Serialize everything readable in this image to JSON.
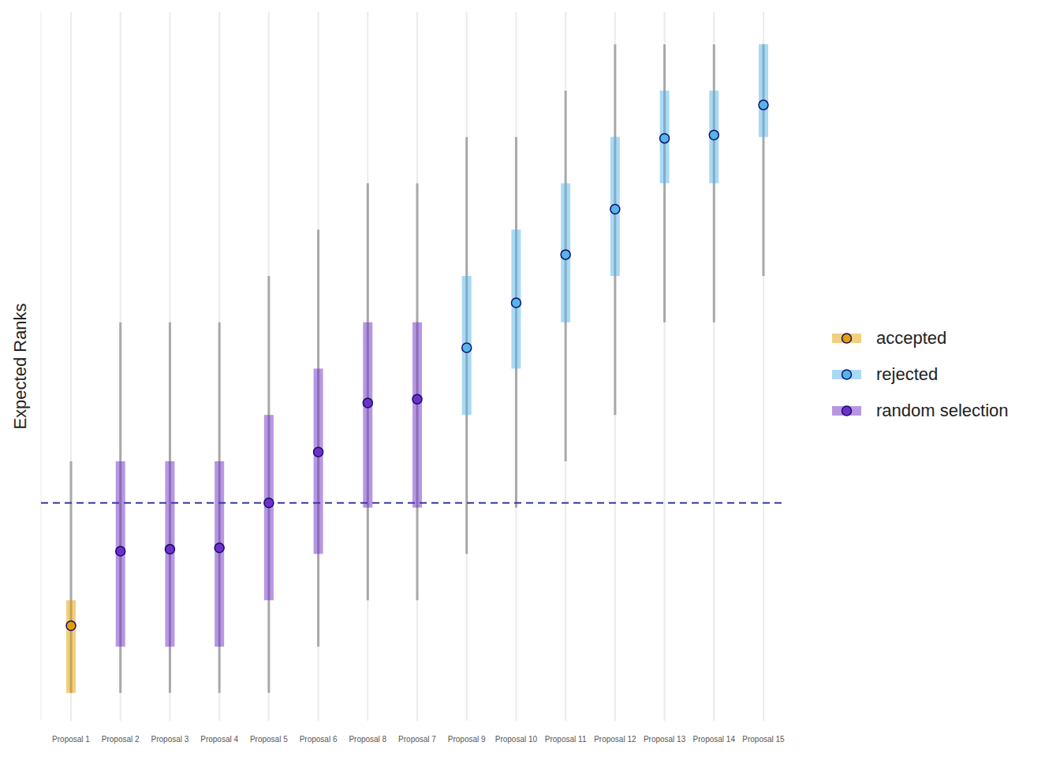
{
  "chart_data": {
    "type": "interval",
    "y_label": "Expected Ranks",
    "categories": [
      "Proposal 1",
      "Proposal 2",
      "Proposal 3",
      "Proposal 4",
      "Proposal 5",
      "Proposal 6",
      "Proposal 8",
      "Proposal 7",
      "Proposal 9",
      "Proposal 10",
      "Proposal 11",
      "Proposal 12",
      "Proposal 13",
      "Proposal 14",
      "Proposal 15"
    ],
    "ylim": [
      0.4,
      15.7
    ],
    "yticks": [],
    "tick_labels": "x",
    "grid": true,
    "legend": "right",
    "marker": "circle",
    "reference_line": 5.1,
    "series": [
      {
        "name": "accepted",
        "color": "#E69F00",
        "values": [
          2.45,
          null,
          null,
          null,
          null,
          null,
          null,
          null,
          null,
          null,
          null,
          null,
          null,
          null,
          null
        ],
        "inner_lower": [
          1,
          null,
          null,
          null,
          null,
          null,
          null,
          null,
          null,
          null,
          null,
          null,
          null,
          null,
          null
        ],
        "inner_upper": [
          3,
          null,
          null,
          null,
          null,
          null,
          null,
          null,
          null,
          null,
          null,
          null,
          null,
          null,
          null
        ],
        "outer_lower": [
          1,
          null,
          null,
          null,
          null,
          null,
          null,
          null,
          null,
          null,
          null,
          null,
          null,
          null,
          null
        ],
        "outer_upper": [
          6,
          null,
          null,
          null,
          null,
          null,
          null,
          null,
          null,
          null,
          null,
          null,
          null,
          null,
          null
        ]
      },
      {
        "name": "rejected",
        "color": "#56B4E9",
        "values": [
          null,
          null,
          null,
          null,
          null,
          null,
          null,
          null,
          8.45,
          9.42,
          10.46,
          11.44,
          12.97,
          13.04,
          13.69
        ],
        "inner_lower": [
          null,
          null,
          null,
          null,
          null,
          null,
          null,
          null,
          7,
          8,
          9,
          10,
          12,
          12,
          13
        ],
        "inner_upper": [
          null,
          null,
          null,
          null,
          null,
          null,
          null,
          null,
          10,
          11,
          12,
          13,
          14,
          14,
          15
        ],
        "outer_lower": [
          null,
          null,
          null,
          null,
          null,
          null,
          null,
          null,
          4,
          5,
          6,
          7,
          9,
          9,
          10
        ],
        "outer_upper": [
          null,
          null,
          null,
          null,
          null,
          null,
          null,
          null,
          13,
          13,
          14,
          15,
          15,
          15,
          15
        ]
      },
      {
        "name": "random selection",
        "color": "#7030C8",
        "values": [
          null,
          4.06,
          4.1,
          4.13,
          5.1,
          6.2,
          7.26,
          7.34,
          null,
          null,
          null,
          null,
          null,
          null,
          null
        ],
        "inner_lower": [
          null,
          2,
          2,
          2,
          3,
          4,
          5,
          5,
          null,
          null,
          null,
          null,
          null,
          null,
          null
        ],
        "inner_upper": [
          null,
          6,
          6,
          6,
          7,
          8,
          9,
          9,
          null,
          null,
          null,
          null,
          null,
          null,
          null
        ],
        "outer_lower": [
          null,
          1,
          1,
          1,
          1,
          2,
          3,
          3,
          null,
          null,
          null,
          null,
          null,
          null,
          null
        ],
        "outer_upper": [
          null,
          9,
          9,
          9,
          10,
          11,
          12,
          12,
          null,
          null,
          null,
          null,
          null,
          null,
          null
        ]
      }
    ]
  }
}
